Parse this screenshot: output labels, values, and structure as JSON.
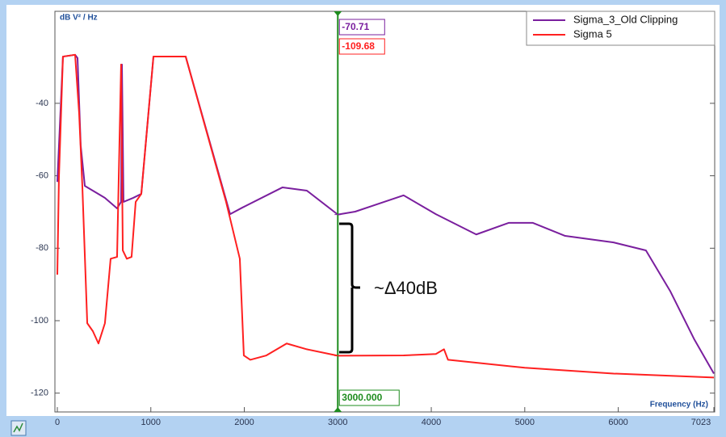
{
  "chart_data": {
    "type": "line",
    "y_label": "dB V² / Hz",
    "x_label": "Frequency (Hz)",
    "xlim": [
      0,
      7023
    ],
    "ylim": [
      -125.2,
      -14.6
    ],
    "xticks": [
      0,
      1000,
      2000,
      3000,
      4000,
      5000,
      6000,
      7023
    ],
    "yticks": [
      -40,
      -60,
      -80,
      -100,
      -120
    ],
    "legend": "top-right",
    "series": [
      {
        "name": "Sigma_3_Old Clipping",
        "color": "#7a1f9e",
        "x": [
          0,
          60,
          190,
          216,
          250,
          294,
          509,
          639,
          682,
          691,
          708,
          812,
          898,
          1028,
          1373,
          1848,
          1978,
          2409,
          2669,
          3000,
          3186,
          3704,
          4049,
          4481,
          4827,
          5087,
          5432,
          5950,
          6296,
          6555,
          6814,
          7023
        ],
        "values": [
          -61.7,
          -27.1,
          -26.6,
          -27.5,
          -51.6,
          -62.8,
          -66.1,
          -69.0,
          -67.2,
          -29.3,
          -67.2,
          -66.1,
          -65.0,
          -27.1,
          -27.1,
          -70.6,
          -68.8,
          -63.2,
          -64.1,
          -70.71,
          -69.9,
          -65.4,
          -70.6,
          -76.2,
          -73.0,
          -73.0,
          -76.6,
          -78.4,
          -80.6,
          -91.8,
          -105.2,
          -114.6
        ]
      },
      {
        "name": "Sigma 5",
        "color": "#ff2020",
        "x": [
          0,
          17,
          60,
          190,
          233,
          268,
          320,
          380,
          440,
          509,
          570,
          639,
          682,
          700,
          743,
          794,
          838,
          898,
          1028,
          1373,
          1805,
          1952,
          1995,
          2064,
          2236,
          2453,
          2669,
          3000,
          3704,
          4049,
          4136,
          4179,
          5000,
          5950,
          7023
        ],
        "values": [
          -87.3,
          -60.5,
          -27.1,
          -26.6,
          -42.7,
          -63.2,
          -100.7,
          -102.9,
          -106.3,
          -100.7,
          -82.9,
          -82.4,
          -29.3,
          -80.6,
          -82.9,
          -82.4,
          -67.2,
          -65.0,
          -27.1,
          -27.1,
          -67.2,
          -82.9,
          -109.6,
          -110.8,
          -109.6,
          -106.3,
          -107.9,
          -109.68,
          -109.6,
          -109.2,
          -107.9,
          -110.8,
          -113.0,
          -114.6,
          -115.7
        ]
      }
    ],
    "cursor": {
      "x": {
        "value": 3000,
        "label": "3000.000"
      },
      "values": [
        -70.71,
        -109.68
      ]
    },
    "annotation": "~Δ40dB"
  }
}
